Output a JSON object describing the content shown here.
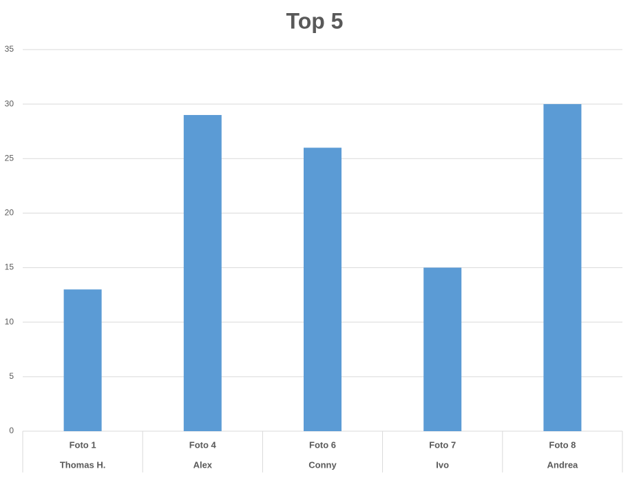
{
  "chart_data": {
    "type": "bar",
    "title": "Top 5",
    "categories": [
      "Foto 1",
      "Foto 4",
      "Foto 6",
      "Foto 7",
      "Foto 8"
    ],
    "category_names": [
      "Thomas H.",
      "Alex",
      "Conny",
      "Ivo",
      "Andrea"
    ],
    "values": [
      13,
      29,
      26,
      15,
      30
    ],
    "color": "#5b9bd5",
    "ylim": [
      0,
      35
    ],
    "yticks": [
      0,
      5,
      10,
      15,
      20,
      25,
      30,
      35
    ],
    "grid": true
  }
}
